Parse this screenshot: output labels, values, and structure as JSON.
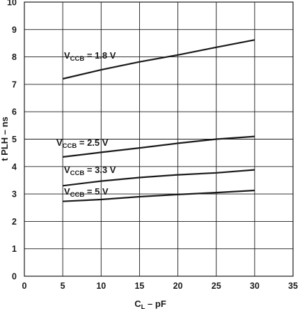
{
  "chart_data": {
    "type": "line",
    "xlabel": {
      "main": "C",
      "sub": "L",
      "rest": " – pF"
    },
    "ylabel": "t PLH – ns",
    "xlim": [
      0,
      35
    ],
    "ylim": [
      0,
      10
    ],
    "xticks": [
      0,
      5,
      10,
      15,
      20,
      25,
      30,
      35
    ],
    "yticks": [
      0,
      1,
      2,
      3,
      4,
      5,
      6,
      7,
      8,
      9,
      10
    ],
    "grid": true,
    "x": [
      5,
      10,
      15,
      20,
      25,
      30
    ],
    "series": [
      {
        "name": {
          "main": "V",
          "sub": "CCB",
          "rest": " = 1.8 V"
        },
        "values": [
          7.2,
          7.53,
          7.82,
          8.07,
          8.35,
          8.62
        ]
      },
      {
        "name": {
          "main": "V",
          "sub": "CCB",
          "rest": " = 2.5 V"
        },
        "values": [
          4.35,
          4.52,
          4.68,
          4.85,
          5.0,
          5.1
        ]
      },
      {
        "name": {
          "main": "V",
          "sub": "CCB",
          "rest": " = 3.3 V"
        },
        "values": [
          3.3,
          3.47,
          3.6,
          3.7,
          3.77,
          3.88
        ]
      },
      {
        "name": {
          "main": "V",
          "sub": "CCB",
          "rest": " = 5 V"
        },
        "values": [
          2.73,
          2.8,
          2.9,
          2.98,
          3.05,
          3.13
        ]
      }
    ],
    "colors": {
      "line": "#1a1a1a",
      "grid": "#1a1a1a",
      "background": "#ffffff"
    }
  }
}
